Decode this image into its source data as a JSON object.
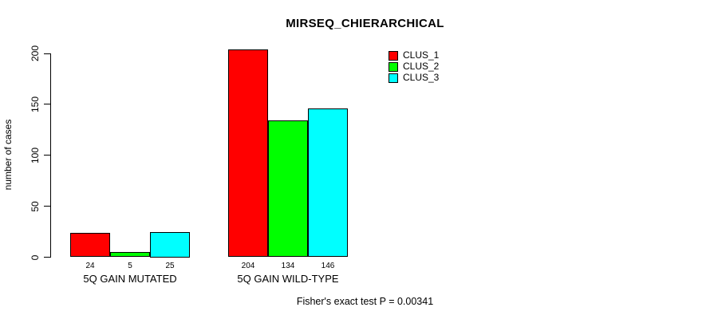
{
  "title": "MIRSEQ_CHIERARCHICAL",
  "footer": "Fisher's exact test P = 0.00341",
  "chart_data": {
    "type": "bar",
    "grouped": true,
    "categories": [
      "5Q GAIN MUTATED",
      "5Q GAIN WILD-TYPE"
    ],
    "series": [
      {
        "name": "CLUS_1",
        "color": "#ff0000",
        "values": [
          24,
          204
        ]
      },
      {
        "name": "CLUS_2",
        "color": "#00ff00",
        "values": [
          5,
          134
        ]
      },
      {
        "name": "CLUS_3",
        "color": "#00ffff",
        "values": [
          25,
          146
        ]
      }
    ],
    "bar_value_labels": [
      [
        "24",
        "5",
        "25"
      ],
      [
        "204",
        "134",
        "146"
      ]
    ],
    "ylabel": "number of cases",
    "xlabel": "",
    "yticks": [
      0,
      50,
      100,
      150,
      200
    ],
    "ylim": [
      0,
      200
    ],
    "grid": false,
    "legend_position": "top-right",
    "bar_border_color": "#000000",
    "axis_color": "#000000"
  }
}
